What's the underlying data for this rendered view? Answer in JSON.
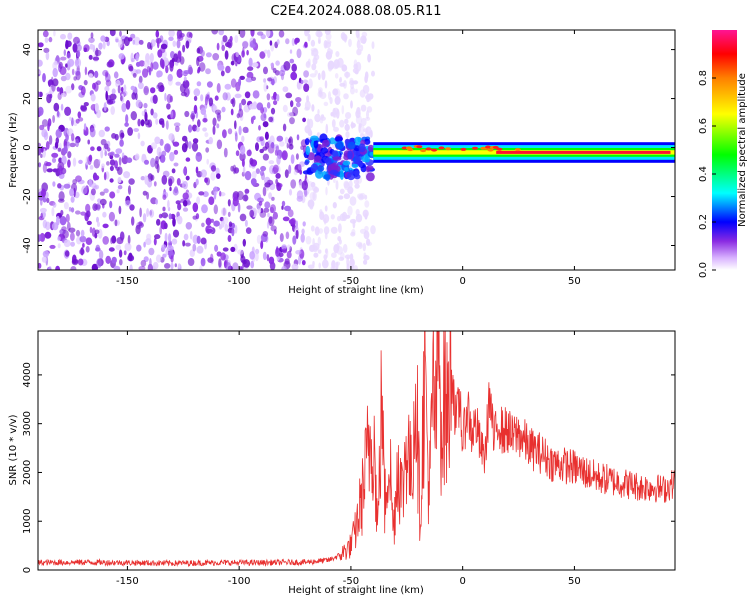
{
  "title": "C2E4.2024.088.08.05.R11",
  "chart_data": [
    {
      "type": "heatmap",
      "xlabel": "Height of straight line (km)",
      "ylabel": "Frequency (Hz)",
      "xlim": [
        -190,
        95
      ],
      "ylim": [
        -50,
        48
      ],
      "x_ticks": [
        -150,
        -100,
        -50,
        0,
        50
      ],
      "y_ticks": [
        -40,
        -20,
        0,
        20,
        40
      ],
      "colorbar": {
        "label": "Normalized spectral amplitude",
        "range": [
          0,
          1
        ],
        "ticks": [
          0.0,
          0.2,
          0.4,
          0.6,
          0.8
        ],
        "tick_labels": [
          "0.0",
          "0.2",
          "0.4",
          "0.6",
          "0.8"
        ],
        "colors": [
          "#ffffff",
          "#d9b3ff",
          "#8a2be2",
          "#0000ff",
          "#00ffff",
          "#00ff00",
          "#ffff00",
          "#ff8000",
          "#ff0000",
          "#ff1493"
        ]
      },
      "regions": [
        {
          "x_range": [
            -190,
            -70
          ],
          "f_range": [
            -50,
            48
          ],
          "amplitude": 0.15,
          "description_level": "noise"
        },
        {
          "x_range": [
            -70,
            -40
          ],
          "f_range": [
            -12,
            4
          ],
          "amplitude": 0.25
        },
        {
          "x_range": [
            -40,
            95
          ],
          "f_center": -2,
          "f_halfwidth": 3,
          "amplitude": 0.85
        }
      ],
      "grid": false,
      "legend": "colorbar-right"
    },
    {
      "type": "line",
      "xlabel": "Height of straight line (km)",
      "ylabel": "SNR (10 * v/v)",
      "xlim": [
        -190,
        95
      ],
      "ylim": [
        0,
        4900
      ],
      "x_ticks": [
        -150,
        -100,
        -50,
        0,
        50
      ],
      "y_ticks": [
        0,
        1000,
        2000,
        3000,
        4000
      ],
      "color": "#e8302f",
      "series": [
        {
          "x": [
            -190,
            -170,
            -150,
            -130,
            -110,
            -90,
            -70,
            -60,
            -55,
            -50,
            -48,
            -45,
            -42,
            -40,
            -38,
            -36,
            -35,
            -33,
            -31,
            -29,
            -27,
            -25,
            -23,
            -21,
            -19,
            -17,
            -15,
            -13,
            -12,
            -11,
            -10,
            -9,
            -8,
            -7,
            -5,
            -3,
            -1,
            0,
            2,
            4,
            6,
            8,
            10,
            12,
            14,
            16,
            18,
            20,
            22,
            25,
            30,
            35,
            40,
            45,
            50,
            55,
            60,
            65,
            70,
            75,
            80,
            85,
            90,
            95
          ],
          "y": [
            150,
            160,
            150,
            140,
            150,
            150,
            160,
            200,
            300,
            500,
            800,
            1500,
            2500,
            3000,
            800,
            3800,
            1200,
            2600,
            800,
            2300,
            1500,
            2800,
            1800,
            4000,
            1000,
            4200,
            1500,
            3800,
            2800,
            4900,
            3500,
            3000,
            3700,
            3100,
            4300,
            3000,
            3500,
            2500,
            3400,
            2800,
            3000,
            2500,
            2300,
            3600,
            2600,
            3100,
            2800,
            2900,
            2700,
            2800,
            2500,
            2400,
            2200,
            2150,
            2100,
            2000,
            1900,
            1850,
            1800,
            1750,
            1700,
            1700,
            1650,
            1800
          ]
        }
      ],
      "grid": false
    }
  ]
}
